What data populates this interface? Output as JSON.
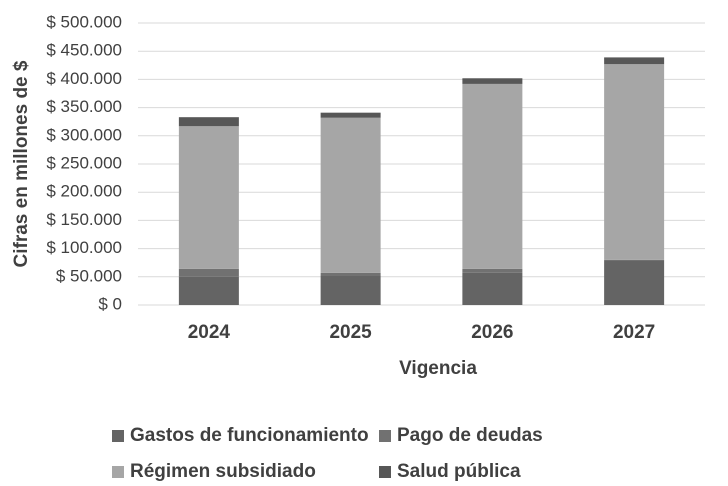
{
  "chart_data": {
    "type": "stacked_bar",
    "x_label": "Vigencia",
    "y_label": "Cifras en millones de $",
    "categories": [
      "2024",
      "2025",
      "2026",
      "2027"
    ],
    "series": [
      {
        "name": "Gastos de funcionamiento",
        "color": "#646464",
        "values": [
          50000,
          53000,
          57000,
          78000
        ]
      },
      {
        "name": "Pago de deudas",
        "color": "#717171",
        "values": [
          14000,
          4000,
          7000,
          2000
        ]
      },
      {
        "name": "Régimen subsidiado",
        "color": "#a6a6a6",
        "values": [
          253000,
          275000,
          328000,
          347000
        ]
      },
      {
        "name": "Salud pública",
        "color": "#575757",
        "values": [
          16000,
          9000,
          10000,
          12000
        ]
      }
    ],
    "ylim": [
      0,
      500000
    ],
    "yticks": [
      {
        "value": 0,
        "label": "$ 0"
      },
      {
        "value": 50000,
        "label": "$ 50.000"
      },
      {
        "value": 100000,
        "label": "$ 100.000"
      },
      {
        "value": 150000,
        "label": "$ 150.000"
      },
      {
        "value": 200000,
        "label": "$ 200.000"
      },
      {
        "value": 250000,
        "label": "$ 250.000"
      },
      {
        "value": 300000,
        "label": "$ 300.000"
      },
      {
        "value": 350000,
        "label": "$ 350.000"
      },
      {
        "value": 400000,
        "label": "$ 400.000"
      },
      {
        "value": 450000,
        "label": "$ 450.000"
      },
      {
        "value": 500000,
        "label": "$ 500.000"
      }
    ],
    "grid": true
  }
}
